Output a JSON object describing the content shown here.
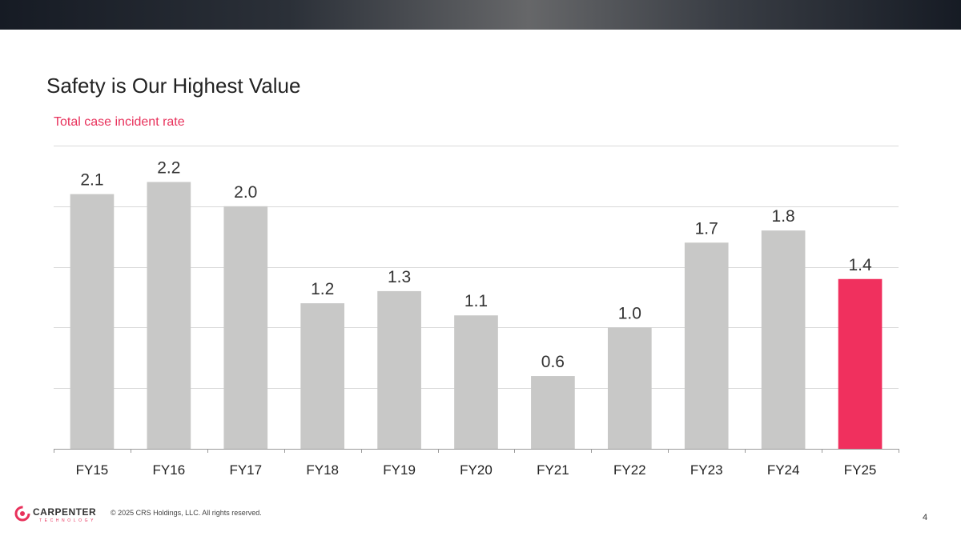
{
  "slide": {
    "title": "Safety is Our Highest Value",
    "copyright": "© 2025 CRS Holdings, LLC. All rights reserved.",
    "page_number": "4",
    "logo_text": "CARPENTER",
    "logo_subtext": "TECHNOLOGY"
  },
  "colors": {
    "bar_default": "#c8c8c7",
    "bar_highlight": "#f0305e",
    "subtitle": "#e8315b",
    "gridline": "#d9d9d9",
    "axis": "#9a9a9a"
  },
  "chart_data": {
    "type": "bar",
    "subtitle": "Total case incident rate",
    "categories": [
      "FY15",
      "FY16",
      "FY17",
      "FY18",
      "FY19",
      "FY20",
      "FY21",
      "FY22",
      "FY23",
      "FY24",
      "FY25"
    ],
    "values": [
      2.1,
      2.2,
      2.0,
      1.2,
      1.3,
      1.1,
      0.6,
      1.0,
      1.7,
      1.8,
      1.4
    ],
    "data_labels": [
      "2.1",
      "2.2",
      "2.0",
      "1.2",
      "1.3",
      "1.1",
      "0.6",
      "1.0",
      "1.7",
      "1.8",
      "1.4"
    ],
    "highlight_category": "FY25",
    "ylim": [
      0,
      2.5
    ],
    "ytick_step": 0.5,
    "grid": true,
    "legend": "none"
  }
}
